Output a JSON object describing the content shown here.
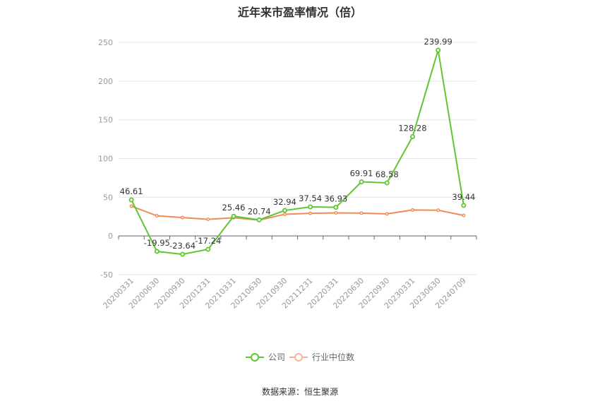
{
  "chart_data": {
    "type": "line",
    "title": "近年来市盈率情况（倍）",
    "categories": [
      "20200331",
      "20200630",
      "20200930",
      "20201231",
      "20210331",
      "20210630",
      "20210930",
      "20211231",
      "20220331",
      "20220630",
      "20220930",
      "20230331",
      "20230630",
      "20240709"
    ],
    "series": [
      {
        "name": "公司",
        "color": "#5ec631",
        "values": [
          46.61,
          -19.95,
          -23.64,
          -17.24,
          25.46,
          20.74,
          32.94,
          37.54,
          36.93,
          69.91,
          68.58,
          128.28,
          239.99,
          39.44
        ],
        "labels": [
          "46.61",
          "-19.95",
          "-23.64",
          "-17.24",
          "25.46",
          "20.74",
          "32.94",
          "37.54",
          "36.93",
          "69.91",
          "68.58",
          "128.28",
          "239.99",
          "39.44"
        ]
      },
      {
        "name": "行业中位数",
        "color": "#f28b54",
        "values": [
          38.5,
          26.0,
          23.8,
          21.5,
          23.5,
          20.5,
          28.0,
          29.2,
          29.8,
          29.5,
          28.5,
          33.5,
          33.2,
          26.5
        ]
      }
    ],
    "ylim": [
      -50,
      250
    ],
    "yticks": [
      -50,
      0,
      50,
      100,
      150,
      200,
      250
    ],
    "ytick_labels": [
      "-50",
      "0",
      "50",
      "100",
      "150",
      "200",
      "250"
    ],
    "grid": true,
    "legend_position": "bottom"
  },
  "source": "数据来源：恒生聚源"
}
